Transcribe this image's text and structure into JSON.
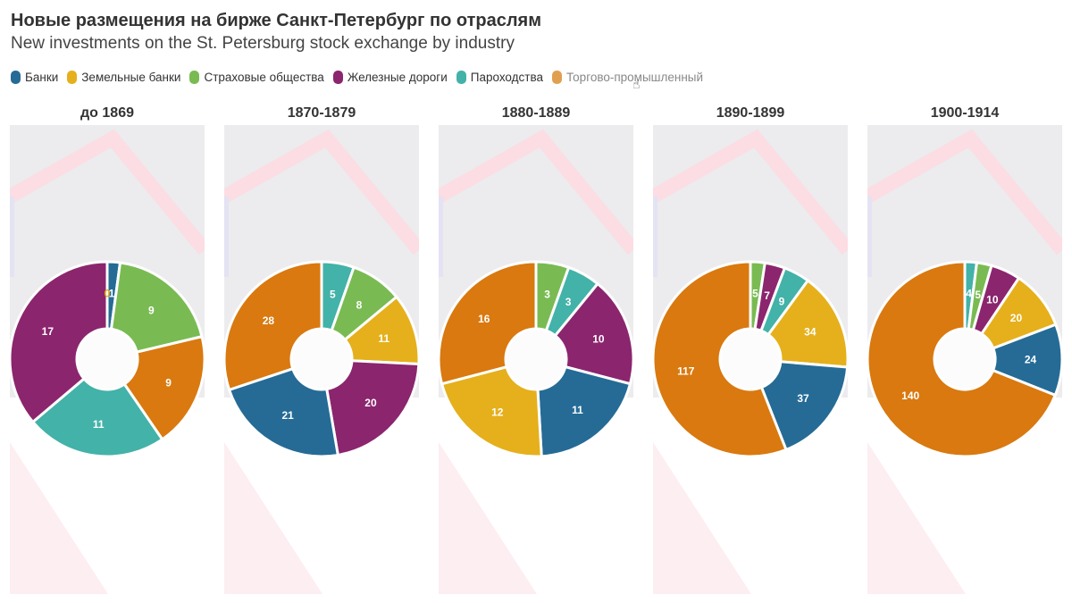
{
  "header": {
    "title": "Новые размещения на бирже Санкт-Петербург по отраслям",
    "subtitle": "New investments on the St. Petersburg stock exchange by industry"
  },
  "colors": {
    "banks": "#256b96",
    "land_banks": "#e5b01c",
    "insurance": "#79bb52",
    "railways": "#8b256e",
    "shipping": "#43b2a8",
    "industrial": "#d9790f"
  },
  "chart_data": {
    "type": "pie",
    "title": "Новые размещения на бирже Санкт-Петербург по отраслям",
    "subtitle": "New investments on the St. Petersburg stock exchange by industry",
    "legend_position": "top-left",
    "legend": [
      {
        "key": "banks",
        "label": "Банки"
      },
      {
        "key": "land_banks",
        "label": "Земельные банки"
      },
      {
        "key": "insurance",
        "label": "Страховые общества"
      },
      {
        "key": "railways",
        "label": "Железные дороги"
      },
      {
        "key": "shipping",
        "label": "Пароходства"
      },
      {
        "key": "industrial",
        "label": "Торгово-промышленный"
      }
    ],
    "panels": [
      {
        "period": "до 1869",
        "slices": [
          {
            "key": "banks",
            "value": 1
          },
          {
            "key": "insurance",
            "value": 9
          },
          {
            "key": "industrial",
            "value": 9
          },
          {
            "key": "shipping",
            "value": 11
          },
          {
            "key": "railways",
            "value": 17
          },
          {
            "key": "land_banks",
            "value": 0
          }
        ]
      },
      {
        "period": "1870-1879",
        "slices": [
          {
            "key": "shipping",
            "value": 5
          },
          {
            "key": "insurance",
            "value": 8
          },
          {
            "key": "land_banks",
            "value": 11
          },
          {
            "key": "railways",
            "value": 20
          },
          {
            "key": "banks",
            "value": 21
          },
          {
            "key": "industrial",
            "value": 28
          }
        ]
      },
      {
        "period": "1880-1889",
        "slices": [
          {
            "key": "insurance",
            "value": 3
          },
          {
            "key": "shipping",
            "value": 3
          },
          {
            "key": "railways",
            "value": 10
          },
          {
            "key": "banks",
            "value": 11
          },
          {
            "key": "land_banks",
            "value": 12
          },
          {
            "key": "industrial",
            "value": 16
          }
        ]
      },
      {
        "period": "1890-1899",
        "slices": [
          {
            "key": "insurance",
            "value": 5
          },
          {
            "key": "railways",
            "value": 7
          },
          {
            "key": "shipping",
            "value": 9
          },
          {
            "key": "land_banks",
            "value": 34
          },
          {
            "key": "banks",
            "value": 37
          },
          {
            "key": "industrial",
            "value": 117
          }
        ]
      },
      {
        "period": "1900-1914",
        "slices": [
          {
            "key": "shipping",
            "value": 4
          },
          {
            "key": "insurance",
            "value": 5
          },
          {
            "key": "railways",
            "value": 10
          },
          {
            "key": "land_banks",
            "value": 20
          },
          {
            "key": "banks",
            "value": 24
          },
          {
            "key": "industrial",
            "value": 140
          }
        ]
      }
    ]
  }
}
